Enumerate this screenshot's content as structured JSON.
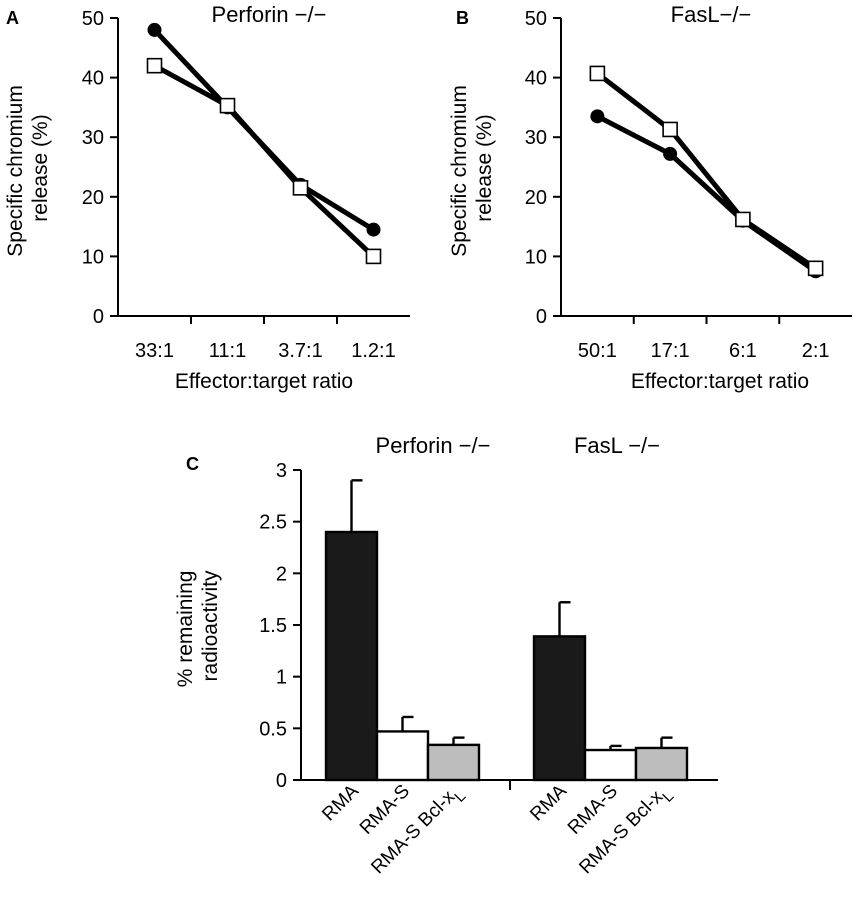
{
  "figure": {
    "panels": [
      "A",
      "B",
      "C"
    ]
  },
  "chart_data": [
    {
      "panel": "A",
      "type": "line",
      "title": "Perforin −/−",
      "xlabel": "Effector:target ratio",
      "ylabel_lines": [
        "Specific chromium",
        "release (%)"
      ],
      "ylim": [
        0,
        50
      ],
      "yticks": [
        "0",
        "10",
        "20",
        "30",
        "40",
        "50"
      ],
      "categories": [
        "33:1",
        "11:1",
        "3.7:1",
        "1.2:1"
      ],
      "series": [
        {
          "marker": "filled-circle",
          "values": [
            48,
            35,
            22,
            14.5
          ]
        },
        {
          "marker": "open-square",
          "values": [
            42,
            35.3,
            21.5,
            10
          ]
        }
      ]
    },
    {
      "panel": "B",
      "type": "line",
      "title": "FasL−/−",
      "xlabel": "Effector:target ratio",
      "ylabel_lines": [
        "Specific chromium",
        "release (%)"
      ],
      "ylim": [
        0,
        50
      ],
      "yticks": [
        "0",
        "10",
        "20",
        "30",
        "40",
        "50"
      ],
      "categories": [
        "50:1",
        "17:1",
        "6:1",
        "2:1"
      ],
      "series": [
        {
          "marker": "filled-circle",
          "values": [
            33.5,
            27.2,
            16,
            7.5
          ]
        },
        {
          "marker": "open-square",
          "values": [
            40.7,
            31.3,
            16.2,
            8
          ]
        }
      ]
    },
    {
      "panel": "C",
      "type": "bar",
      "ylabel_lines": [
        "% remaining",
        "radioactivity"
      ],
      "ylim": [
        0,
        3
      ],
      "yticks": [
        "0",
        "0.5",
        "1",
        "1.5",
        "2",
        "2.5",
        "3"
      ],
      "groups": [
        {
          "title": "Perforin −/−",
          "bars": [
            {
              "label": "RMA",
              "value": 2.4,
              "error": 0.5,
              "fill": "#1a1a1a"
            },
            {
              "label": "RMA-S",
              "value": 0.47,
              "error": 0.14,
              "fill": "#ffffff"
            },
            {
              "label": "RMA-S Bcl-x",
              "label_sub": "L",
              "value": 0.34,
              "error": 0.07,
              "fill": "#bdbdbd"
            }
          ]
        },
        {
          "title": "FasL −/−",
          "bars": [
            {
              "label": "RMA",
              "value": 1.39,
              "error": 0.33,
              "fill": "#1a1a1a"
            },
            {
              "label": "RMA-S",
              "value": 0.29,
              "error": 0.04,
              "fill": "#ffffff"
            },
            {
              "label": "RMA-S Bcl-x",
              "label_sub": "L",
              "value": 0.31,
              "error": 0.1,
              "fill": "#bdbdbd"
            }
          ]
        }
      ]
    }
  ]
}
